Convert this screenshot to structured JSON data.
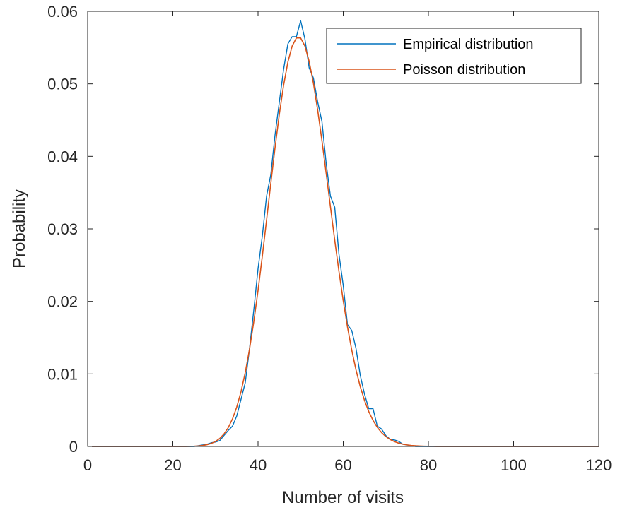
{
  "chart_data": {
    "type": "line",
    "xlabel": "Number of visits",
    "ylabel": "Probability",
    "xlim": [
      0,
      120
    ],
    "ylim": [
      0,
      0.06
    ],
    "xticks": [
      0,
      20,
      40,
      60,
      80,
      100,
      120
    ],
    "xtick_labels": [
      "0",
      "20",
      "40",
      "60",
      "80",
      "100",
      "120"
    ],
    "yticks": [
      0,
      0.01,
      0.02,
      0.03,
      0.04,
      0.05,
      0.06
    ],
    "ytick_labels": [
      "0",
      "0.01",
      "0.02",
      "0.03",
      "0.04",
      "0.05",
      "0.06"
    ],
    "grid": false,
    "legend": {
      "position": "top-right"
    },
    "series": [
      {
        "name": "Empirical distribution",
        "color": "#0072BD",
        "x": [
          1,
          25,
          27,
          28,
          29,
          30,
          31,
          32,
          33,
          34,
          35,
          36,
          37,
          38,
          39,
          40,
          41,
          42,
          43,
          44,
          45,
          46,
          47,
          48,
          49,
          50,
          51,
          52,
          53,
          54,
          55,
          56,
          57,
          58,
          59,
          60,
          61,
          62,
          63,
          64,
          65,
          66,
          67,
          68,
          69,
          70,
          71,
          72,
          73,
          74,
          75,
          76,
          77,
          78,
          80,
          120
        ],
        "y": [
          0,
          0,
          0.0002,
          0.0003,
          0.0005,
          0.0006,
          0.0008,
          0.0015,
          0.0022,
          0.0028,
          0.0042,
          0.0065,
          0.0088,
          0.0135,
          0.0188,
          0.0245,
          0.029,
          0.0345,
          0.0375,
          0.043,
          0.0475,
          0.052,
          0.0555,
          0.0565,
          0.0565,
          0.0587,
          0.0562,
          0.0522,
          0.0508,
          0.0475,
          0.0448,
          0.039,
          0.0345,
          0.033,
          0.0265,
          0.0222,
          0.0168,
          0.016,
          0.0135,
          0.0098,
          0.0072,
          0.0052,
          0.0052,
          0.0028,
          0.0024,
          0.0015,
          0.001,
          0.0009,
          0.0007,
          0.0003,
          0.0002,
          0.0001,
          0,
          0,
          0,
          0
        ]
      },
      {
        "name": "Poisson distribution",
        "color": "#D95319",
        "lambda": 50,
        "x_range": [
          1,
          120
        ]
      }
    ]
  }
}
